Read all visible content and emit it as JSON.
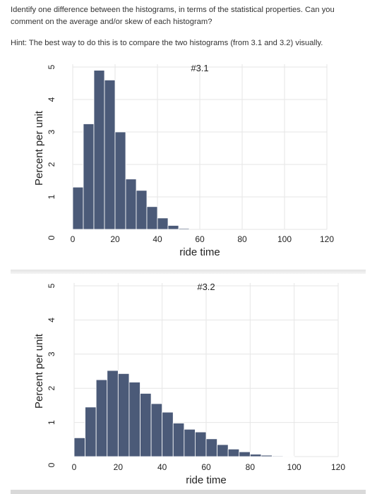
{
  "question": {
    "line1": "Identify one difference between the histograms, in terms of the statistical properties. Can you",
    "line2": "comment on the average and/or skew of each histogram?",
    "hint": "Hint: The best way to do this is to compare the two histograms (from 3.1 and 3.2) visually."
  },
  "colors": {
    "bar": "#4b5a78",
    "bar_edge": "#ffffff",
    "grid": "#e6e6e6"
  },
  "chart_data": [
    {
      "type": "bar",
      "title": "#3.1",
      "xlabel": "ride time",
      "ylabel": "Percent per unit",
      "xlim": [
        0,
        120
      ],
      "ylim": [
        0,
        5
      ],
      "xticks": [
        0,
        20,
        40,
        60,
        80,
        100,
        120
      ],
      "yticks": [
        0,
        1,
        2,
        3,
        4,
        5
      ],
      "bin_width": 5,
      "bin_starts": [
        0,
        5,
        10,
        15,
        20,
        25,
        30,
        35,
        40,
        45,
        50
      ],
      "values": [
        1.3,
        3.25,
        4.9,
        4.6,
        3.0,
        1.55,
        1.2,
        0.7,
        0.35,
        0.12,
        0.03
      ],
      "grid": true
    },
    {
      "type": "bar",
      "title": "#3.2",
      "xlabel": "ride time",
      "ylabel": "Percent per unit",
      "xlim": [
        0,
        120
      ],
      "ylim": [
        0,
        5
      ],
      "xticks": [
        0,
        20,
        40,
        60,
        80,
        100,
        120
      ],
      "yticks": [
        0,
        1,
        2,
        3,
        4,
        5
      ],
      "bin_width": 5,
      "bin_starts": [
        0,
        5,
        10,
        15,
        20,
        25,
        30,
        35,
        40,
        45,
        50,
        55,
        60,
        65,
        70,
        75,
        80,
        85,
        90,
        95
      ],
      "values": [
        0.55,
        1.45,
        2.25,
        2.52,
        2.43,
        2.18,
        1.85,
        1.55,
        1.3,
        0.98,
        0.8,
        0.72,
        0.52,
        0.35,
        0.22,
        0.14,
        0.07,
        0.04,
        0.02,
        0.01
      ],
      "grid": true
    }
  ]
}
